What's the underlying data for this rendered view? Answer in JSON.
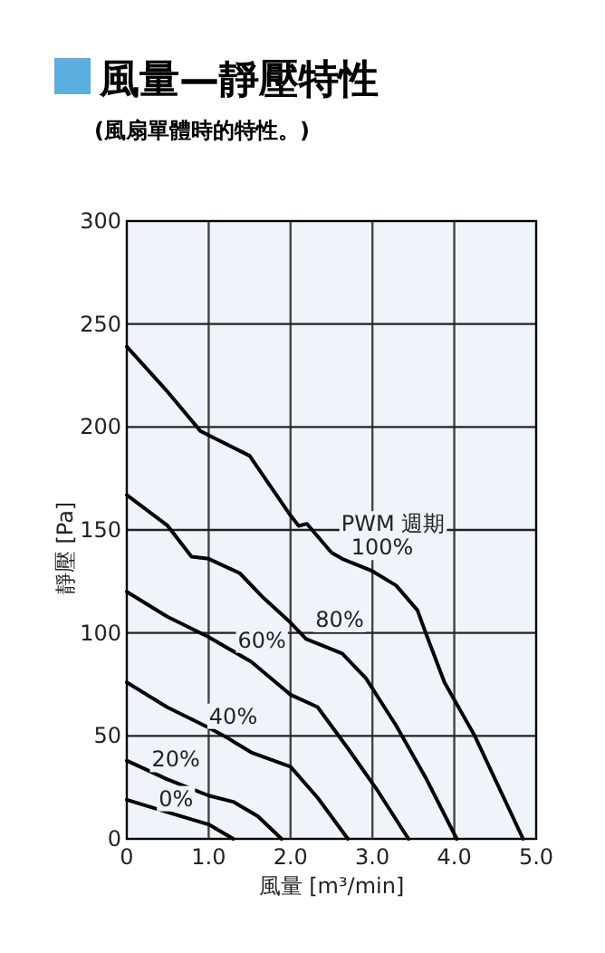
{
  "chart_data": {
    "type": "line",
    "title": "風量—靜壓特性",
    "subtitle": "(風扇單體時的特性。)",
    "xlabel": "風量 [m³/min]",
    "ylabel": "靜壓 [Pa]",
    "legend_title": "PWM 週期",
    "xlim": [
      0,
      5
    ],
    "ylim": [
      0,
      300
    ],
    "xticks": [
      0,
      {
        "value": 1,
        "label": "1.0"
      },
      {
        "value": 2,
        "label": "2.0"
      },
      {
        "value": 3,
        "label": "3.0"
      },
      {
        "value": 4,
        "label": "4.0"
      },
      {
        "value": 5,
        "label": "5.0"
      }
    ],
    "yticks": [
      0,
      50,
      100,
      150,
      200,
      250,
      300
    ],
    "grid": true,
    "marker": "none",
    "line_style": "solid",
    "series": [
      {
        "name": "100%",
        "color": "#000000",
        "x": [
          0,
          0.5,
          0.9,
          1.0,
          1.5,
          2.0,
          2.1,
          2.2,
          2.5,
          2.63,
          3.0,
          3.29,
          3.55,
          3.66,
          3.88,
          4.25,
          4.84
        ],
        "values": [
          239,
          217,
          198,
          196,
          186,
          157,
          152,
          153,
          139,
          136,
          130,
          123,
          111,
          99,
          76,
          50,
          0
        ]
      },
      {
        "name": "80%",
        "color": "#000000",
        "x": [
          0,
          0.5,
          0.79,
          1.0,
          1.38,
          1.67,
          2.0,
          2.19,
          2.63,
          2.92,
          3.29,
          3.66,
          4.03
        ],
        "values": [
          167,
          152,
          137,
          136,
          129,
          117,
          105,
          97,
          90,
          78,
          55,
          29,
          0
        ]
      },
      {
        "name": "60%",
        "color": "#000000",
        "x": [
          0,
          0.49,
          1.0,
          1.52,
          2.0,
          2.33,
          2.7,
          3.07,
          3.44
        ],
        "values": [
          120,
          108,
          98,
          86,
          70,
          64,
          44,
          23,
          0
        ]
      },
      {
        "name": "40%",
        "color": "#000000",
        "x": [
          0,
          0.49,
          1.0,
          1.23,
          1.52,
          2.0,
          2.33,
          2.7
        ],
        "values": [
          76,
          64,
          54,
          49,
          42,
          35,
          20,
          0
        ]
      },
      {
        "name": "20%",
        "color": "#000000",
        "x": [
          0,
          0.49,
          1.0,
          1.3,
          1.6,
          1.89
        ],
        "values": [
          38,
          29,
          21,
          18,
          11,
          0
        ]
      },
      {
        "name": "0%",
        "color": "#000000",
        "x": [
          0,
          0.49,
          1.0,
          1.3
        ],
        "values": [
          19,
          13,
          7,
          0
        ]
      }
    ]
  }
}
